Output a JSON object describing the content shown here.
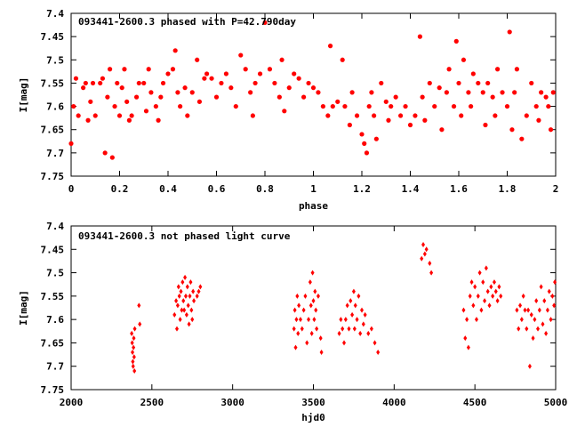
{
  "chart_data": [
    {
      "type": "scatter",
      "title": "093441-2600.3 phased with P=42.790day",
      "xlabel": "phase",
      "ylabel": "I[mag]",
      "xlim": [
        0,
        2
      ],
      "ylim": [
        7.75,
        7.4
      ],
      "y_inverted": true,
      "grid": false,
      "marker": "filled circle",
      "color": "#ff0000",
      "x_ticks": [
        "0",
        "0.2",
        "0.4",
        "0.6",
        "0.8",
        "1",
        "1.2",
        "1.4",
        "1.6",
        "1.8",
        "2"
      ],
      "y_ticks": [
        "7.4",
        "7.45",
        "7.5",
        "7.55",
        "7.6",
        "7.65",
        "7.7",
        "7.75"
      ],
      "points": [
        [
          0.0,
          7.68
        ],
        [
          0.01,
          7.6
        ],
        [
          0.02,
          7.54
        ],
        [
          0.03,
          7.62
        ],
        [
          0.05,
          7.56
        ],
        [
          0.06,
          7.55
        ],
        [
          0.07,
          7.63
        ],
        [
          0.08,
          7.59
        ],
        [
          0.09,
          7.55
        ],
        [
          0.1,
          7.62
        ],
        [
          0.12,
          7.55
        ],
        [
          0.13,
          7.54
        ],
        [
          0.14,
          7.7
        ],
        [
          0.15,
          7.58
        ],
        [
          0.16,
          7.52
        ],
        [
          0.17,
          7.71
        ],
        [
          0.18,
          7.6
        ],
        [
          0.19,
          7.55
        ],
        [
          0.2,
          7.62
        ],
        [
          0.21,
          7.56
        ],
        [
          0.22,
          7.52
        ],
        [
          0.23,
          7.59
        ],
        [
          0.24,
          7.63
        ],
        [
          0.25,
          7.62
        ],
        [
          0.27,
          7.58
        ],
        [
          0.28,
          7.55
        ],
        [
          0.3,
          7.55
        ],
        [
          0.31,
          7.61
        ],
        [
          0.32,
          7.52
        ],
        [
          0.33,
          7.57
        ],
        [
          0.35,
          7.6
        ],
        [
          0.36,
          7.63
        ],
        [
          0.37,
          7.58
        ],
        [
          0.38,
          7.55
        ],
        [
          0.4,
          7.53
        ],
        [
          0.42,
          7.52
        ],
        [
          0.43,
          7.48
        ],
        [
          0.44,
          7.57
        ],
        [
          0.45,
          7.6
        ],
        [
          0.47,
          7.56
        ],
        [
          0.48,
          7.62
        ],
        [
          0.5,
          7.57
        ],
        [
          0.52,
          7.5
        ],
        [
          0.53,
          7.59
        ],
        [
          0.55,
          7.54
        ],
        [
          0.56,
          7.53
        ],
        [
          0.58,
          7.54
        ],
        [
          0.6,
          7.58
        ],
        [
          0.62,
          7.55
        ],
        [
          0.64,
          7.53
        ],
        [
          0.66,
          7.56
        ],
        [
          0.68,
          7.6
        ],
        [
          0.7,
          7.49
        ],
        [
          0.72,
          7.52
        ],
        [
          0.74,
          7.57
        ],
        [
          0.75,
          7.62
        ],
        [
          0.76,
          7.55
        ],
        [
          0.78,
          7.53
        ],
        [
          0.8,
          7.42
        ],
        [
          0.82,
          7.52
        ],
        [
          0.84,
          7.55
        ],
        [
          0.86,
          7.58
        ],
        [
          0.87,
          7.5
        ],
        [
          0.88,
          7.61
        ],
        [
          0.9,
          7.56
        ],
        [
          0.92,
          7.53
        ],
        [
          0.94,
          7.54
        ],
        [
          0.96,
          7.58
        ],
        [
          0.98,
          7.55
        ],
        [
          1.0,
          7.56
        ],
        [
          1.02,
          7.57
        ],
        [
          1.04,
          7.6
        ],
        [
          1.06,
          7.62
        ],
        [
          1.07,
          7.47
        ],
        [
          1.08,
          7.6
        ],
        [
          1.1,
          7.59
        ],
        [
          1.12,
          7.5
        ],
        [
          1.13,
          7.6
        ],
        [
          1.15,
          7.64
        ],
        [
          1.16,
          7.57
        ],
        [
          1.18,
          7.62
        ],
        [
          1.2,
          7.66
        ],
        [
          1.21,
          7.68
        ],
        [
          1.22,
          7.7
        ],
        [
          1.23,
          7.6
        ],
        [
          1.24,
          7.57
        ],
        [
          1.25,
          7.62
        ],
        [
          1.26,
          7.67
        ],
        [
          1.28,
          7.55
        ],
        [
          1.3,
          7.59
        ],
        [
          1.31,
          7.63
        ],
        [
          1.32,
          7.6
        ],
        [
          1.34,
          7.58
        ],
        [
          1.36,
          7.62
        ],
        [
          1.38,
          7.6
        ],
        [
          1.4,
          7.64
        ],
        [
          1.42,
          7.62
        ],
        [
          1.44,
          7.45
        ],
        [
          1.45,
          7.58
        ],
        [
          1.46,
          7.63
        ],
        [
          1.48,
          7.55
        ],
        [
          1.5,
          7.6
        ],
        [
          1.52,
          7.56
        ],
        [
          1.53,
          7.65
        ],
        [
          1.55,
          7.57
        ],
        [
          1.56,
          7.52
        ],
        [
          1.58,
          7.6
        ],
        [
          1.59,
          7.46
        ],
        [
          1.6,
          7.55
        ],
        [
          1.61,
          7.62
        ],
        [
          1.62,
          7.5
        ],
        [
          1.64,
          7.57
        ],
        [
          1.65,
          7.6
        ],
        [
          1.66,
          7.53
        ],
        [
          1.68,
          7.55
        ],
        [
          1.7,
          7.57
        ],
        [
          1.71,
          7.64
        ],
        [
          1.72,
          7.55
        ],
        [
          1.74,
          7.58
        ],
        [
          1.75,
          7.62
        ],
        [
          1.76,
          7.52
        ],
        [
          1.78,
          7.57
        ],
        [
          1.8,
          7.6
        ],
        [
          1.81,
          7.44
        ],
        [
          1.82,
          7.65
        ],
        [
          1.83,
          7.57
        ],
        [
          1.84,
          7.52
        ],
        [
          1.86,
          7.67
        ],
        [
          1.88,
          7.62
        ],
        [
          1.9,
          7.55
        ],
        [
          1.92,
          7.6
        ],
        [
          1.93,
          7.63
        ],
        [
          1.94,
          7.57
        ],
        [
          1.96,
          7.58
        ],
        [
          1.97,
          7.6
        ],
        [
          1.98,
          7.65
        ],
        [
          1.99,
          7.57
        ]
      ]
    },
    {
      "type": "scatter",
      "title": "093441-2600.3 not phased light curve",
      "xlabel": "hjd0",
      "ylabel": "I[mag]",
      "xlim": [
        2000,
        5000
      ],
      "ylim": [
        7.75,
        7.4
      ],
      "y_inverted": true,
      "grid": false,
      "marker": "diamond",
      "color": "#ff0000",
      "x_ticks": [
        "2000",
        "2500",
        "3000",
        "3500",
        "4000",
        "4500",
        "5000"
      ],
      "y_ticks": [
        "7.4",
        "7.45",
        "7.5",
        "7.55",
        "7.6",
        "7.65",
        "7.7",
        "7.75"
      ],
      "points": [
        [
          2375,
          7.63
        ],
        [
          2378,
          7.65
        ],
        [
          2380,
          7.67
        ],
        [
          2382,
          7.69
        ],
        [
          2384,
          7.7
        ],
        [
          2386,
          7.66
        ],
        [
          2388,
          7.64
        ],
        [
          2390,
          7.68
        ],
        [
          2392,
          7.71
        ],
        [
          2394,
          7.62
        ],
        [
          2420,
          7.57
        ],
        [
          2425,
          7.61
        ],
        [
          2640,
          7.59
        ],
        [
          2650,
          7.56
        ],
        [
          2655,
          7.62
        ],
        [
          2660,
          7.57
        ],
        [
          2665,
          7.53
        ],
        [
          2670,
          7.55
        ],
        [
          2675,
          7.6
        ],
        [
          2680,
          7.54
        ],
        [
          2685,
          7.58
        ],
        [
          2690,
          7.52
        ],
        [
          2695,
          7.56
        ],
        [
          2700,
          7.58
        ],
        [
          2705,
          7.51
        ],
        [
          2710,
          7.55
        ],
        [
          2715,
          7.59
        ],
        [
          2720,
          7.53
        ],
        [
          2725,
          7.57
        ],
        [
          2730,
          7.61
        ],
        [
          2735,
          7.55
        ],
        [
          2740,
          7.52
        ],
        [
          2745,
          7.58
        ],
        [
          2750,
          7.6
        ],
        [
          2755,
          7.54
        ],
        [
          2760,
          7.56
        ],
        [
          2780,
          7.55
        ],
        [
          2790,
          7.54
        ],
        [
          2800,
          7.53
        ],
        [
          3380,
          7.62
        ],
        [
          3385,
          7.58
        ],
        [
          3390,
          7.66
        ],
        [
          3395,
          7.6
        ],
        [
          3400,
          7.55
        ],
        [
          3405,
          7.63
        ],
        [
          3410,
          7.57
        ],
        [
          3420,
          7.6
        ],
        [
          3430,
          7.62
        ],
        [
          3440,
          7.58
        ],
        [
          3450,
          7.55
        ],
        [
          3460,
          7.65
        ],
        [
          3470,
          7.6
        ],
        [
          3480,
          7.52
        ],
        [
          3485,
          7.57
        ],
        [
          3490,
          7.63
        ],
        [
          3495,
          7.5
        ],
        [
          3500,
          7.56
        ],
        [
          3505,
          7.6
        ],
        [
          3510,
          7.54
        ],
        [
          3515,
          7.58
        ],
        [
          3520,
          7.62
        ],
        [
          3530,
          7.55
        ],
        [
          3545,
          7.64
        ],
        [
          3550,
          7.67
        ],
        [
          3660,
          7.63
        ],
        [
          3670,
          7.6
        ],
        [
          3680,
          7.62
        ],
        [
          3690,
          7.65
        ],
        [
          3700,
          7.6
        ],
        [
          3710,
          7.57
        ],
        [
          3720,
          7.62
        ],
        [
          3730,
          7.56
        ],
        [
          3740,
          7.59
        ],
        [
          3750,
          7.54
        ],
        [
          3755,
          7.62
        ],
        [
          3760,
          7.57
        ],
        [
          3770,
          7.6
        ],
        [
          3780,
          7.55
        ],
        [
          3790,
          7.63
        ],
        [
          3800,
          7.58
        ],
        [
          3810,
          7.61
        ],
        [
          3820,
          7.59
        ],
        [
          3840,
          7.63
        ],
        [
          3860,
          7.62
        ],
        [
          3880,
          7.65
        ],
        [
          3900,
          7.67
        ],
        [
          4170,
          7.47
        ],
        [
          4180,
          7.44
        ],
        [
          4190,
          7.46
        ],
        [
          4200,
          7.45
        ],
        [
          4220,
          7.48
        ],
        [
          4230,
          7.5
        ],
        [
          4430,
          7.58
        ],
        [
          4440,
          7.64
        ],
        [
          4450,
          7.6
        ],
        [
          4460,
          7.66
        ],
        [
          4470,
          7.55
        ],
        [
          4480,
          7.52
        ],
        [
          4490,
          7.57
        ],
        [
          4500,
          7.53
        ],
        [
          4510,
          7.6
        ],
        [
          4520,
          7.55
        ],
        [
          4530,
          7.5
        ],
        [
          4540,
          7.58
        ],
        [
          4550,
          7.52
        ],
        [
          4560,
          7.56
        ],
        [
          4570,
          7.49
        ],
        [
          4580,
          7.54
        ],
        [
          4590,
          7.57
        ],
        [
          4600,
          7.53
        ],
        [
          4610,
          7.55
        ],
        [
          4620,
          7.52
        ],
        [
          4630,
          7.54
        ],
        [
          4640,
          7.56
        ],
        [
          4650,
          7.53
        ],
        [
          4660,
          7.55
        ],
        [
          4760,
          7.58
        ],
        [
          4770,
          7.62
        ],
        [
          4780,
          7.57
        ],
        [
          4790,
          7.6
        ],
        [
          4800,
          7.55
        ],
        [
          4810,
          7.58
        ],
        [
          4820,
          7.62
        ],
        [
          4830,
          7.58
        ],
        [
          4840,
          7.7
        ],
        [
          4850,
          7.59
        ],
        [
          4860,
          7.64
        ],
        [
          4870,
          7.6
        ],
        [
          4880,
          7.56
        ],
        [
          4890,
          7.62
        ],
        [
          4900,
          7.58
        ],
        [
          4910,
          7.53
        ],
        [
          4920,
          7.61
        ],
        [
          4930,
          7.56
        ],
        [
          4940,
          7.63
        ],
        [
          4950,
          7.58
        ],
        [
          4960,
          7.54
        ],
        [
          4970,
          7.6
        ],
        [
          4980,
          7.55
        ],
        [
          4990,
          7.57
        ],
        [
          4995,
          7.52
        ]
      ]
    }
  ]
}
